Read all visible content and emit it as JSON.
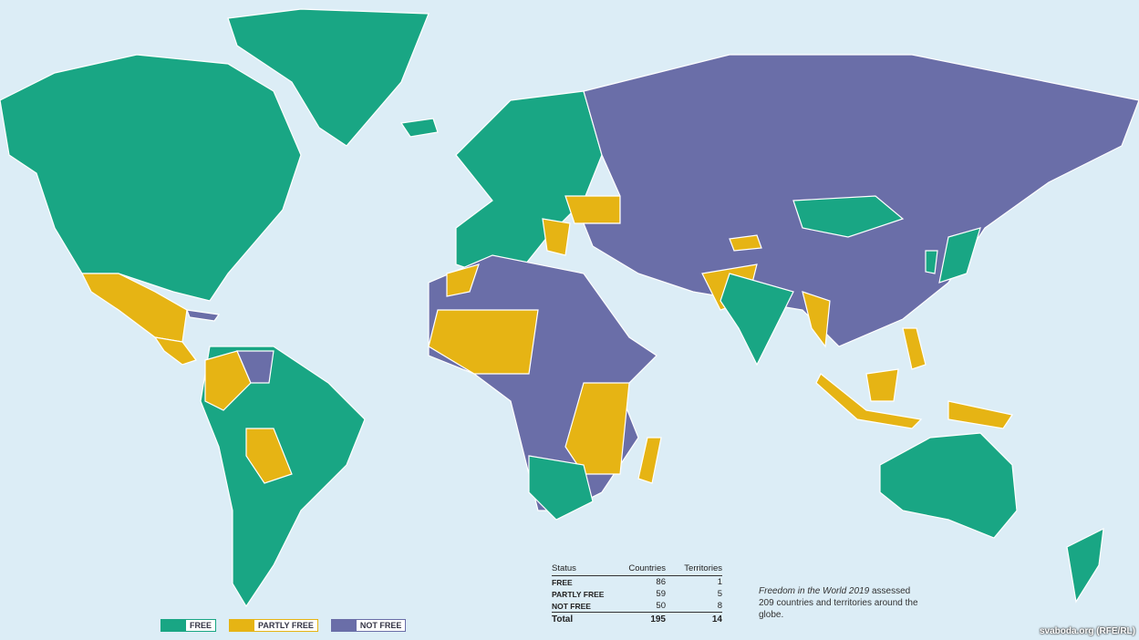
{
  "colors": {
    "free": "#19a684",
    "partly_free": "#e6b414",
    "not_free": "#6a6ea8",
    "ocean": "#dcedf6"
  },
  "legend": [
    {
      "label": "FREE",
      "color": "#19a684"
    },
    {
      "label": "PARTLY FREE",
      "color": "#e6b414"
    },
    {
      "label": "NOT FREE",
      "color": "#6a6ea8"
    }
  ],
  "stats": {
    "headers": [
      "Status",
      "Countries",
      "Territories"
    ],
    "rows": [
      {
        "status": "FREE",
        "countries": "86",
        "territories": "1"
      },
      {
        "status": "PARTLY FREE",
        "countries": "59",
        "territories": "5"
      },
      {
        "status": "NOT FREE",
        "countries": "50",
        "territories": "8"
      }
    ],
    "total": {
      "status": "Total",
      "countries": "195",
      "territories": "14"
    }
  },
  "caption": {
    "title": "Freedom in the World 2019",
    "text": " assessed 209 countries and territories around the globe."
  },
  "watermark": "svaboda.org (RFE/RL)"
}
